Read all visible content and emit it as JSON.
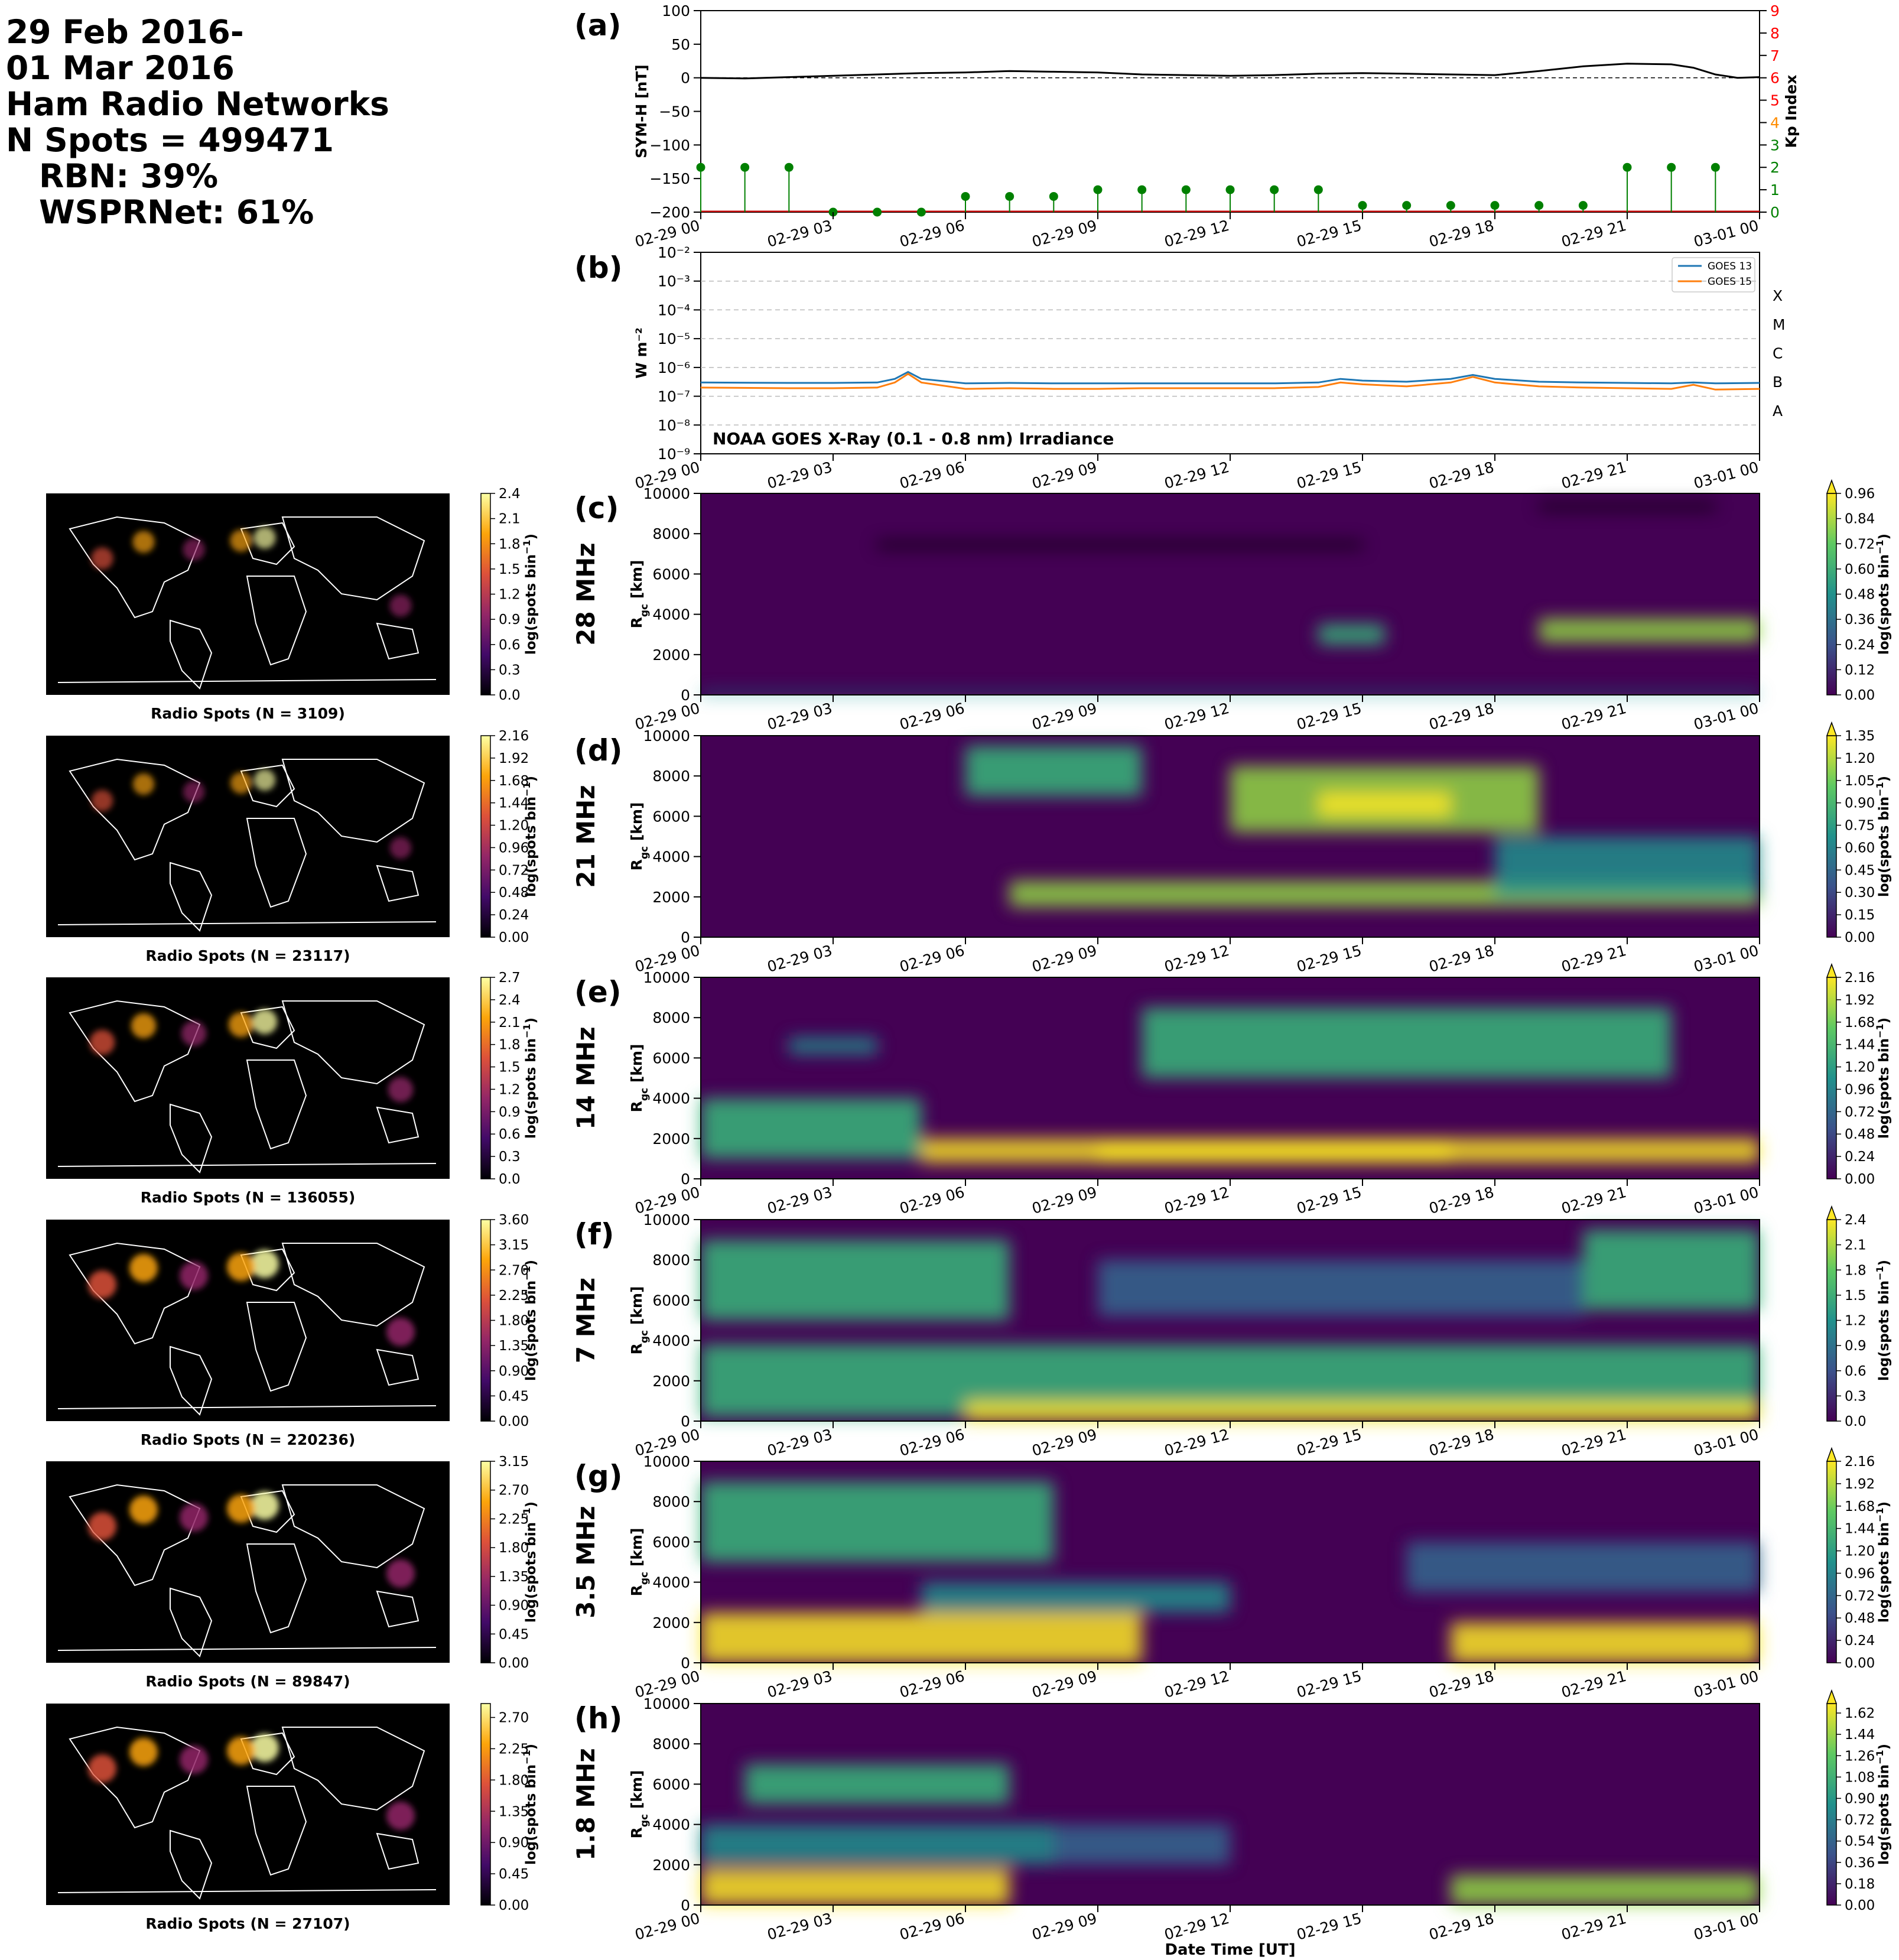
{
  "header": {
    "line1": "29 Feb 2016-",
    "line2": "01 Mar 2016",
    "line3": "Ham Radio Networks",
    "line4": "N Spots = 499471",
    "line5": "RBN: 39%",
    "line6": "WSPRNet: 61%"
  },
  "time_ticks": [
    "02-29 00",
    "02-29 03",
    "02-29 06",
    "02-29 09",
    "02-29 12",
    "02-29 15",
    "02-29 18",
    "02-29 21",
    "03-01 00"
  ],
  "chart_data": [
    {
      "panel": "(a)",
      "type": "line",
      "ylabel": "SYM-H [nT]",
      "y2label": "Kp Index",
      "ylim": [
        -200,
        100
      ],
      "yticks": [
        "100",
        "50",
        "0",
        "−50",
        "−100",
        "−150",
        "−200"
      ],
      "y2lim": [
        0,
        9
      ],
      "y2ticks": [
        "0",
        "1",
        "2",
        "3",
        "4",
        "5",
        "6",
        "7",
        "8",
        "9"
      ],
      "x_hours": [
        0,
        1,
        2,
        3,
        4,
        5,
        6,
        7,
        8,
        9,
        10,
        11,
        12,
        13,
        14,
        15,
        16,
        17,
        18,
        19,
        20,
        21,
        22,
        22.5,
        23,
        23.5,
        24
      ],
      "symh_nT": [
        0,
        -1,
        1,
        3,
        5,
        7,
        8,
        10,
        9,
        8,
        5,
        4,
        3,
        4,
        6,
        7,
        6,
        5,
        4,
        10,
        17,
        21,
        20,
        15,
        5,
        0,
        1
      ],
      "kp_x_hours": [
        0,
        1,
        2,
        3,
        4,
        5,
        6,
        7,
        8,
        9,
        10,
        11,
        12,
        13,
        14,
        15,
        16,
        17,
        18,
        19,
        20,
        21,
        22,
        23
      ],
      "kp_values": [
        2,
        2,
        2,
        0,
        0,
        0,
        0.7,
        0.7,
        0.7,
        1,
        1,
        1,
        1,
        1,
        1,
        0.3,
        0.3,
        0.3,
        0.3,
        0.3,
        0.3,
        2,
        2,
        2
      ]
    },
    {
      "panel": "(b)",
      "type": "line",
      "ylabel": "W m⁻²",
      "yscale": "log",
      "ylim": [
        1e-09,
        0.01
      ],
      "yticks": [
        "10⁻⁹",
        "10⁻⁸",
        "10⁻⁷",
        "10⁻⁶",
        "10⁻⁵",
        "10⁻⁴",
        "10⁻³",
        "10⁻²"
      ],
      "class_labels": [
        "A",
        "B",
        "C",
        "M",
        "X"
      ],
      "annotation": "NOAA GOES X-Ray (0.1 - 0.8 nm) Irradiance",
      "legend_position": "upper right",
      "x_hours": [
        0,
        2,
        3,
        4,
        4.4,
        4.7,
        5,
        6,
        7,
        8,
        9,
        10,
        11,
        12,
        13,
        14,
        14.5,
        15,
        16,
        17,
        17.5,
        18,
        19,
        20,
        21,
        22,
        22.5,
        23,
        24
      ],
      "series": [
        {
          "name": "GOES 13",
          "color": "#1f77b4",
          "values": [
            3e-07,
            2.9e-07,
            2.9e-07,
            3e-07,
            4e-07,
            7e-07,
            4e-07,
            2.8e-07,
            2.9e-07,
            2.8e-07,
            2.8e-07,
            2.8e-07,
            2.8e-07,
            2.8e-07,
            2.8e-07,
            3e-07,
            4e-07,
            3.5e-07,
            3.2e-07,
            4e-07,
            5.5e-07,
            4e-07,
            3.2e-07,
            3e-07,
            2.9e-07,
            2.8e-07,
            3e-07,
            2.8e-07,
            2.9e-07
          ]
        },
        {
          "name": "GOES 15",
          "color": "#ff7f0e",
          "values": [
            2e-07,
            1.9e-07,
            1.9e-07,
            2e-07,
            3e-07,
            6e-07,
            3e-07,
            1.8e-07,
            1.9e-07,
            1.8e-07,
            1.8e-07,
            1.9e-07,
            1.9e-07,
            1.9e-07,
            1.9e-07,
            2.1e-07,
            3e-07,
            2.6e-07,
            2.2e-07,
            3e-07,
            4.7e-07,
            3e-07,
            2.2e-07,
            2e-07,
            1.9e-07,
            1.8e-07,
            2.5e-07,
            1.7e-07,
            1.8e-07
          ]
        }
      ]
    }
  ],
  "bands": [
    {
      "panel": "(c)",
      "band": "28 MHz",
      "map_label": "Radio Spots (N = 3109)",
      "map_cbar_ticks": [
        "0.0",
        "0.3",
        "0.6",
        "0.9",
        "1.2",
        "1.5",
        "1.8",
        "2.1",
        "2.4"
      ],
      "map_cbar_max": 2.4,
      "rtp_cbar_ticks": [
        "0.00",
        "0.12",
        "0.24",
        "0.36",
        "0.48",
        "0.60",
        "0.72",
        "0.84",
        "0.96"
      ],
      "rtp_cbar_max": 0.96
    },
    {
      "panel": "(d)",
      "band": "21 MHz",
      "map_label": "Radio Spots (N = 23117)",
      "map_cbar_ticks": [
        "0.00",
        "0.24",
        "0.48",
        "0.72",
        "0.96",
        "1.20",
        "1.44",
        "1.68",
        "1.92",
        "2.16"
      ],
      "map_cbar_max": 2.16,
      "rtp_cbar_ticks": [
        "0.00",
        "0.15",
        "0.30",
        "0.45",
        "0.60",
        "0.75",
        "0.90",
        "1.05",
        "1.20",
        "1.35"
      ],
      "rtp_cbar_max": 1.35
    },
    {
      "panel": "(e)",
      "band": "14 MHz",
      "map_label": "Radio Spots (N = 136055)",
      "map_cbar_ticks": [
        "0.0",
        "0.3",
        "0.6",
        "0.9",
        "1.2",
        "1.5",
        "1.8",
        "2.1",
        "2.4",
        "2.7"
      ],
      "map_cbar_max": 2.7,
      "rtp_cbar_ticks": [
        "0.00",
        "0.24",
        "0.48",
        "0.72",
        "0.96",
        "1.20",
        "1.44",
        "1.68",
        "1.92",
        "2.16"
      ],
      "rtp_cbar_max": 2.16
    },
    {
      "panel": "(f)",
      "band": "7 MHz",
      "map_label": "Radio Spots (N = 220236)",
      "map_cbar_ticks": [
        "0.00",
        "0.45",
        "0.90",
        "1.35",
        "1.80",
        "2.25",
        "2.70",
        "3.15",
        "3.60"
      ],
      "map_cbar_max": 3.6,
      "rtp_cbar_ticks": [
        "0.0",
        "0.3",
        "0.6",
        "0.9",
        "1.2",
        "1.5",
        "1.8",
        "2.1",
        "2.4"
      ],
      "rtp_cbar_max": 2.4
    },
    {
      "panel": "(g)",
      "band": "3.5 MHz",
      "map_label": "Radio Spots (N = 89847)",
      "map_cbar_ticks": [
        "0.00",
        "0.45",
        "0.90",
        "1.35",
        "1.80",
        "2.25",
        "2.70",
        "3.15"
      ],
      "map_cbar_max": 3.15,
      "rtp_cbar_ticks": [
        "0.00",
        "0.24",
        "0.48",
        "0.72",
        "0.96",
        "1.20",
        "1.44",
        "1.68",
        "1.92",
        "2.16"
      ],
      "rtp_cbar_max": 2.16
    },
    {
      "panel": "(h)",
      "band": "1.8 MHz",
      "map_label": "Radio Spots (N = 27107)",
      "map_cbar_ticks": [
        "0.00",
        "0.45",
        "0.90",
        "1.35",
        "1.80",
        "2.25",
        "2.70"
      ],
      "map_cbar_max": 2.9,
      "rtp_cbar_ticks": [
        "0.00",
        "0.18",
        "0.36",
        "0.54",
        "0.72",
        "0.90",
        "1.08",
        "1.26",
        "1.44",
        "1.62"
      ],
      "rtp_cbar_max": 1.7
    }
  ],
  "rtp": {
    "ylabel": "R",
    "ylabel_sub": "gc",
    "ylabel_unit": " [km]",
    "yticks": [
      "0",
      "2000",
      "4000",
      "6000",
      "8000",
      "10000"
    ],
    "ylim": [
      0,
      10000
    ]
  },
  "cbar_label": "log(spots bin",
  "cbar_label_sup": "−1",
  "cbar_label_end": ")",
  "xlabel": "Date Time [UT]"
}
